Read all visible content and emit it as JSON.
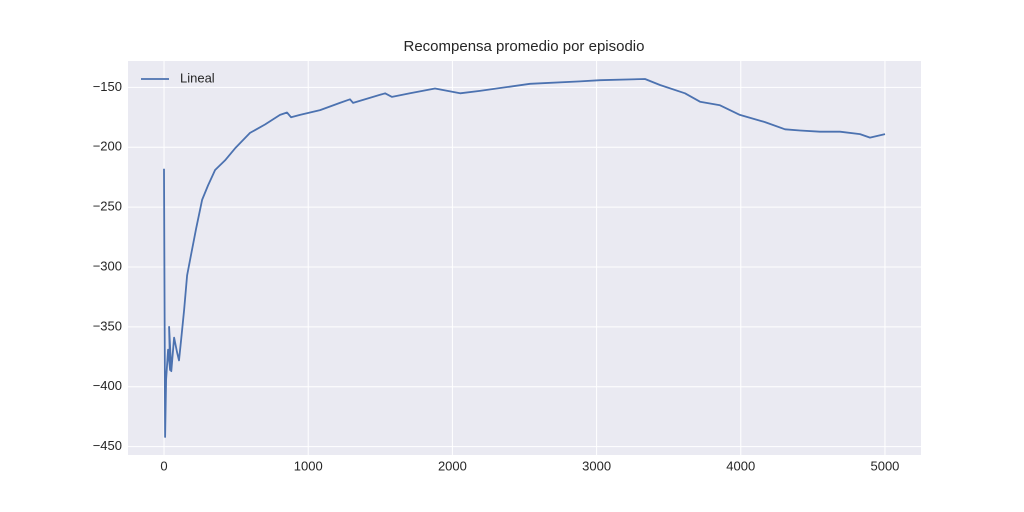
{
  "chart_data": {
    "type": "line",
    "title": "Recompensa promedio por episodio",
    "x": [
      0,
      7,
      14,
      28,
      42,
      35,
      50,
      70,
      90,
      104,
      118,
      139,
      160,
      187,
      222,
      264,
      305,
      354,
      423,
      492,
      596,
      700,
      804,
      853,
      881,
      943,
      1082,
      1220,
      1290,
      1311,
      1533,
      1581,
      1706,
      1879,
      2053,
      2191,
      2538,
      2885,
      3024,
      3336,
      3440,
      3613,
      3717,
      3856,
      3994,
      4168,
      4307,
      4411,
      4549,
      4688,
      4827,
      4896,
      5000
    ],
    "series": [
      {
        "name": "Lineal",
        "color": "#4c72b0",
        "values": [
          -218,
          -442,
          -394,
          -369,
          -386,
          -350,
          -387,
          -359,
          -371,
          -378,
          -361,
          -336,
          -307,
          -290,
          -268,
          -244,
          -232,
          -219,
          -211,
          -201,
          -188,
          -181,
          -173,
          -171,
          -175,
          -173,
          -169,
          -163,
          -160,
          -163,
          -155,
          -158,
          -155,
          -151,
          -155,
          -153,
          -147,
          -145,
          -144,
          -143,
          -148,
          -155,
          -162,
          -165,
          -173,
          -179,
          -185,
          -186,
          -187,
          -187,
          -189,
          -192,
          -189
        ]
      }
    ],
    "xlim": [
      -250,
      5250
    ],
    "ylim": [
      -457,
      -128
    ],
    "xticks": [
      0,
      1000,
      2000,
      3000,
      4000,
      5000
    ],
    "yticks": [
      {
        "value": -150,
        "label": "−150"
      },
      {
        "value": -200,
        "label": "−200"
      },
      {
        "value": -250,
        "label": "−250"
      },
      {
        "value": -300,
        "label": "−300"
      },
      {
        "value": -350,
        "label": "−350"
      },
      {
        "value": -400,
        "label": "−400"
      },
      {
        "value": -450,
        "label": "−450"
      }
    ],
    "grid": true,
    "legend": "upper-left"
  }
}
